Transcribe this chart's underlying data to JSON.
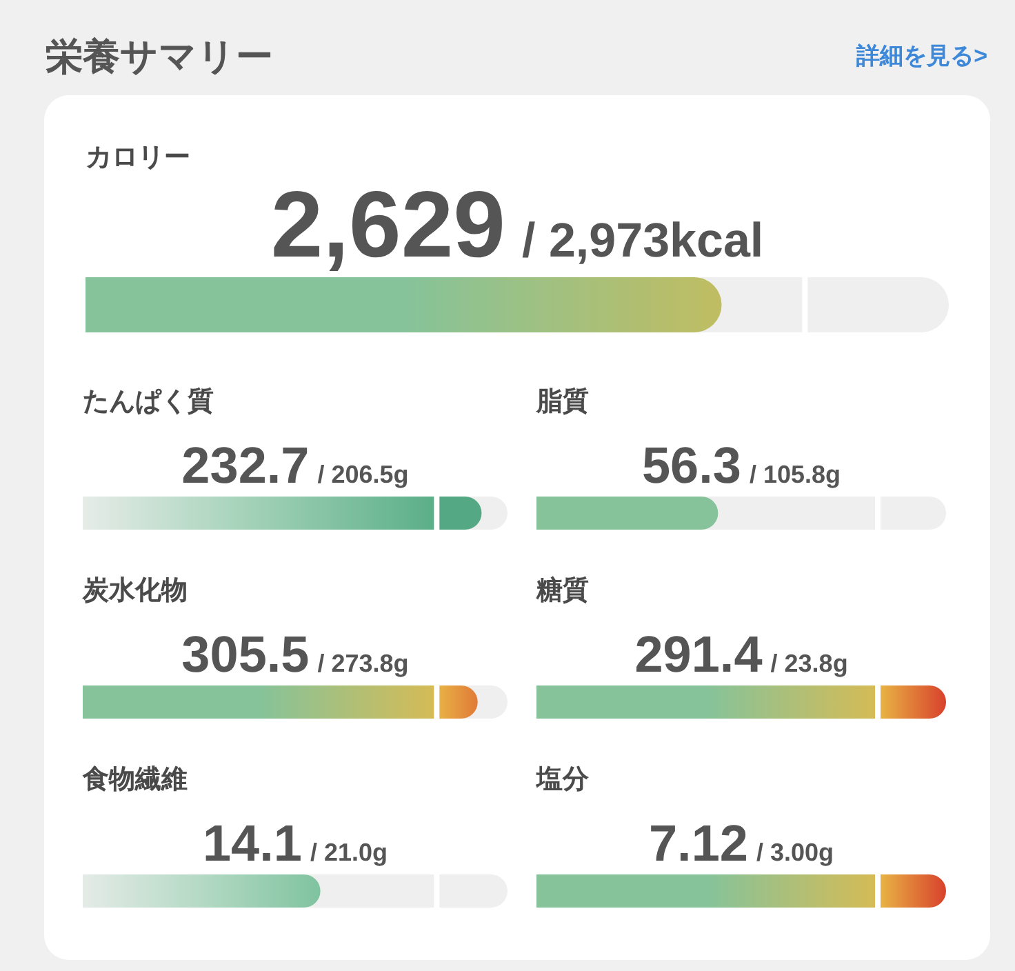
{
  "chart_data": {
    "type": "other",
    "title": "栄養サマリー",
    "annotations": [
      "詳細を見る>"
    ],
    "categories": [
      "カロリー",
      "たんぱく質",
      "脂質",
      "炭水化物",
      "糖質",
      "食物繊維",
      "塩分"
    ],
    "series": [
      {
        "values": [
          2629,
          232.7,
          56.3,
          305.5,
          291.4,
          14.1,
          7.12
        ],
        "value_labels": [
          "2,629",
          "232.7",
          "56.3",
          "305.5",
          "291.4",
          "14.1",
          "7.12"
        ],
        "colors": [
          [
            "#86c39a",
            "#86c39a",
            "#c0bd62"
          ],
          [
            "#e6ece8",
            "#9fd0b5",
            "#5aae88",
            "#55a884",
            "#55a884"
          ],
          [
            "#86c39a",
            "#86c39a",
            "#86c39a"
          ],
          [
            "#86c39a",
            "#86c39a",
            "#d6bb55",
            "#e9b445",
            "#e07a38"
          ],
          [
            "#86c39a",
            "#86c39a",
            "#d6bb55",
            "#e9b845",
            "#d8412c"
          ],
          [
            "#e4ebe7",
            "#b4d9c4",
            "#7fc3a0"
          ],
          [
            "#86c39a",
            "#86c39a",
            "#d6bb55",
            "#e9b845",
            "#d8412c"
          ]
        ]
      },
      {
        "color": "#ffffff",
        "values": [
          2973,
          206.5,
          105.8,
          273.8,
          23.8,
          21.0,
          3.0
        ],
        "value_labels": [
          "/ 2,973kcal",
          "/ 206.5g",
          "/ 105.8g",
          "/ 273.8g",
          "/ 23.8g",
          "/ 21.0g",
          "/ 3.00g"
        ]
      }
    ]
  }
}
